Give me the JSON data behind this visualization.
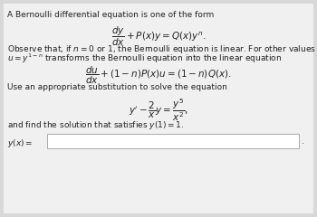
{
  "bg_color": "#d8d8d8",
  "box_color": "#f0f0f0",
  "text_color": "#222222",
  "title_text": "A Bernoulli differential equation is one of the form",
  "eq1": "$\\dfrac{dy}{dx} + P(x)y = Q(x)y^n.$",
  "observe_line1": "Observe that, if $n = 0$ or 1, the Bernoulli equation is linear. For other values of $n$, the substitution",
  "observe_line2": "$u = y^{1-n}$ transforms the Bernoulli equation into the linear equation",
  "eq2": "$\\dfrac{du}{dx} + (1-n)P(x)u = (1-n)Q(x).$",
  "use_text": "Use an appropriate substitution to solve the equation",
  "eq3": "$y' - \\dfrac{2}{x}y = \\dfrac{y^5}{x^2},$",
  "find_text": "and find the solution that satisfies $y(1) = 1$.",
  "answer_label": "$y(x) =$",
  "font_size_body": 6.5,
  "font_size_eq": 7.5
}
